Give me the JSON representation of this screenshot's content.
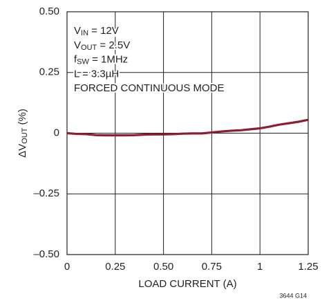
{
  "chart_data": {
    "type": "line",
    "x": [
      0,
      0.05,
      0.1,
      0.15,
      0.2,
      0.25,
      0.3,
      0.35,
      0.4,
      0.45,
      0.5,
      0.55,
      0.6,
      0.65,
      0.7,
      0.75,
      0.8,
      0.85,
      0.9,
      0.95,
      1.0,
      1.05,
      1.1,
      1.15,
      1.2,
      1.25
    ],
    "series": [
      {
        "color": "#8c1d32",
        "values": [
          0,
          -0.003,
          -0.004,
          -0.008,
          -0.009,
          -0.009,
          -0.009,
          -0.008,
          -0.006,
          -0.005,
          -0.005,
          -0.004,
          -0.002,
          -0.001,
          -0.001,
          0.003,
          0.007,
          0.01,
          0.012,
          0.016,
          0.02,
          0.027,
          0.035,
          0.041,
          0.047,
          0.055
        ]
      }
    ],
    "xlim": [
      0,
      1.25
    ],
    "ylim": [
      -0.5,
      0.5
    ],
    "xticks": [
      0,
      0.25,
      {
        "value": 0.5,
        "label": "0.50"
      },
      0.75,
      1,
      1.25
    ],
    "yticks": [
      {
        "value": -0.5,
        "label": "–0.50"
      },
      {
        "value": -0.25,
        "label": "–0.25"
      },
      0,
      0.25,
      {
        "value": 0.5,
        "label": "0.50"
      }
    ],
    "grid": true,
    "xlabel": "LOAD CURRENT (A)",
    "ylabel": [
      {
        "text": "ΔV"
      },
      {
        "text": "OUT",
        "sub": true
      },
      {
        "text": " (%)"
      }
    ],
    "annotations": [
      [
        {
          "text": "V"
        },
        {
          "text": "IN",
          "sub": true
        },
        {
          "text": " = 12V"
        }
      ],
      [
        {
          "text": "V"
        },
        {
          "text": "OUT",
          "sub": true
        },
        {
          "text": " = 2.5V"
        }
      ],
      [
        {
          "text": "f"
        },
        {
          "text": "SW",
          "sub": true
        },
        {
          "text": " = 1MHz"
        }
      ],
      [
        {
          "text": "L = 3.3µH"
        }
      ],
      [
        {
          "text": "FORCED CONTINUOUS MODE"
        }
      ]
    ],
    "footnote": "3644 G14"
  }
}
